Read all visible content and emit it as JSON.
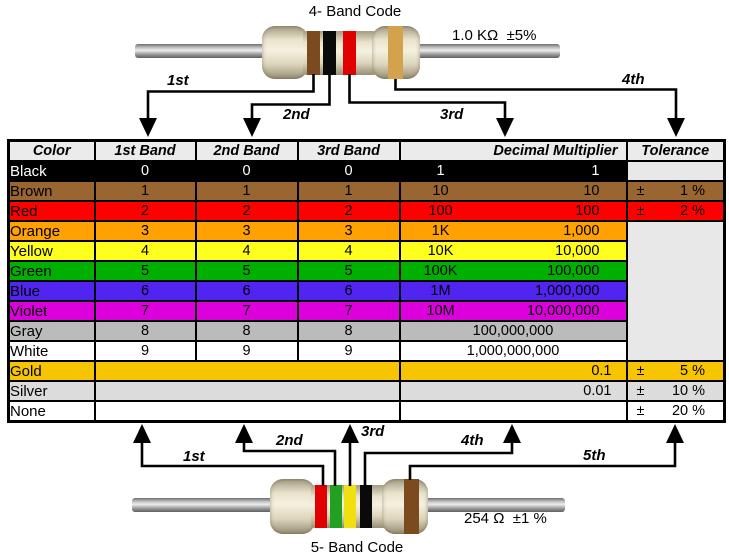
{
  "four_band": {
    "title": "4- Band Code",
    "value_label": "1.0 KΩ  ±5%",
    "arrow_labels": [
      "1st",
      "2nd",
      "3rd",
      "4th"
    ],
    "band_colors": [
      "brown",
      "black",
      "red",
      "gold"
    ],
    "band_hex": [
      "#7B4A1E",
      "#0A0A0A",
      "#E00000",
      "#D2A24C"
    ]
  },
  "five_band": {
    "title": "5- Band Code",
    "value_label": "254 Ω  ±1 %",
    "arrow_labels": [
      "1st",
      "2nd",
      "3rd",
      "4th",
      "5th"
    ],
    "band_colors": [
      "red",
      "green",
      "yellow",
      "black",
      "brown"
    ],
    "band_hex": [
      "#E00000",
      "#22A022",
      "#F0E010",
      "#0A0A0A",
      "#7B4A1E"
    ]
  },
  "table": {
    "headers": {
      "color": "Color",
      "band1": "1st Band",
      "band2": "2nd Band",
      "band3": "3rd Band",
      "multiplier": "Decimal Multiplier",
      "tolerance": "Tolerance"
    },
    "header_bg": "#EBEBEB",
    "empty_cell_bg": "#E8E8E8",
    "rows": [
      {
        "name": "Black",
        "bg": "#000000",
        "fg": "#FFFFFF",
        "bands": [
          "0",
          "0",
          "0"
        ],
        "mult": {
          "left": "1",
          "right": "1"
        },
        "tolerance": {
          "pm": "",
          "value": "",
          "bg": "#E8E8E8"
        }
      },
      {
        "name": "Brown",
        "bg": "#996632",
        "fg": "#000000",
        "bands": [
          "1",
          "1",
          "1"
        ],
        "mult": {
          "left": "10",
          "right": "10"
        },
        "tolerance": {
          "pm": "±",
          "value": "1 %"
        }
      },
      {
        "name": "Red",
        "bg": "#FF0000",
        "fg": "#000000",
        "bands": [
          "2",
          "2",
          "2"
        ],
        "mult": {
          "left": "100",
          "right": "100"
        },
        "tolerance": {
          "pm": "±",
          "value": "2 %"
        }
      },
      {
        "name": "Orange",
        "bg": "#FFA100",
        "fg": "#000000",
        "bands": [
          "3",
          "3",
          "3"
        ],
        "mult": {
          "left": "1K",
          "right": "1,000"
        },
        "tolerance": {
          "merged_rows": 7,
          "bg": "#E8E8E8"
        }
      },
      {
        "name": "Yellow",
        "bg": "#FFFF1E",
        "fg": "#000000",
        "bands": [
          "4",
          "4",
          "4"
        ],
        "mult": {
          "left": "10K",
          "right": "10,000"
        },
        "tolerance": null
      },
      {
        "name": "Green",
        "bg": "#00B000",
        "fg": "#000000",
        "bands": [
          "5",
          "5",
          "5"
        ],
        "mult": {
          "left": "100K",
          "right": "100,000"
        },
        "tolerance": null
      },
      {
        "name": "Blue",
        "bg": "#5224F0",
        "fg": "#000000",
        "bands": [
          "6",
          "6",
          "6"
        ],
        "mult": {
          "left": "1M",
          "right": "1,000,000"
        },
        "tolerance": null
      },
      {
        "name": "Violet",
        "bg": "#DC00DC",
        "fg": "#000000",
        "bands": [
          "7",
          "7",
          "7"
        ],
        "mult": {
          "left": "10M",
          "right": "10,000,000"
        },
        "tolerance": null
      },
      {
        "name": "Gray",
        "bg": "#BBBBBB",
        "fg": "#000000",
        "bands": [
          "8",
          "8",
          "8"
        ],
        "mult": {
          "center": "100,000,000"
        },
        "tolerance": null
      },
      {
        "name": "White",
        "bg": "#FFFFFF",
        "fg": "#000000",
        "bands": [
          "9",
          "9",
          "9"
        ],
        "mult": {
          "center": "1,000,000,000"
        },
        "tolerance": null
      },
      {
        "name": "Gold",
        "bg": "#F6C500",
        "fg": "#000000",
        "bands": null,
        "mult": {
          "right": "0.1",
          "tight": true
        },
        "tolerance": {
          "pm": "±",
          "value": "5 %"
        }
      },
      {
        "name": "Silver",
        "bg": "#DCDCDC",
        "fg": "#000000",
        "bands": null,
        "mult": {
          "right": "0.01",
          "tight": true
        },
        "tolerance": {
          "pm": "±",
          "value": "10 %"
        }
      },
      {
        "name": "None",
        "bg": "#FFFFFF",
        "fg": "#000000",
        "bands": null,
        "mult": {
          "right": "",
          "tight": true
        },
        "tolerance": {
          "pm": "±",
          "value": "20 %"
        }
      }
    ]
  }
}
